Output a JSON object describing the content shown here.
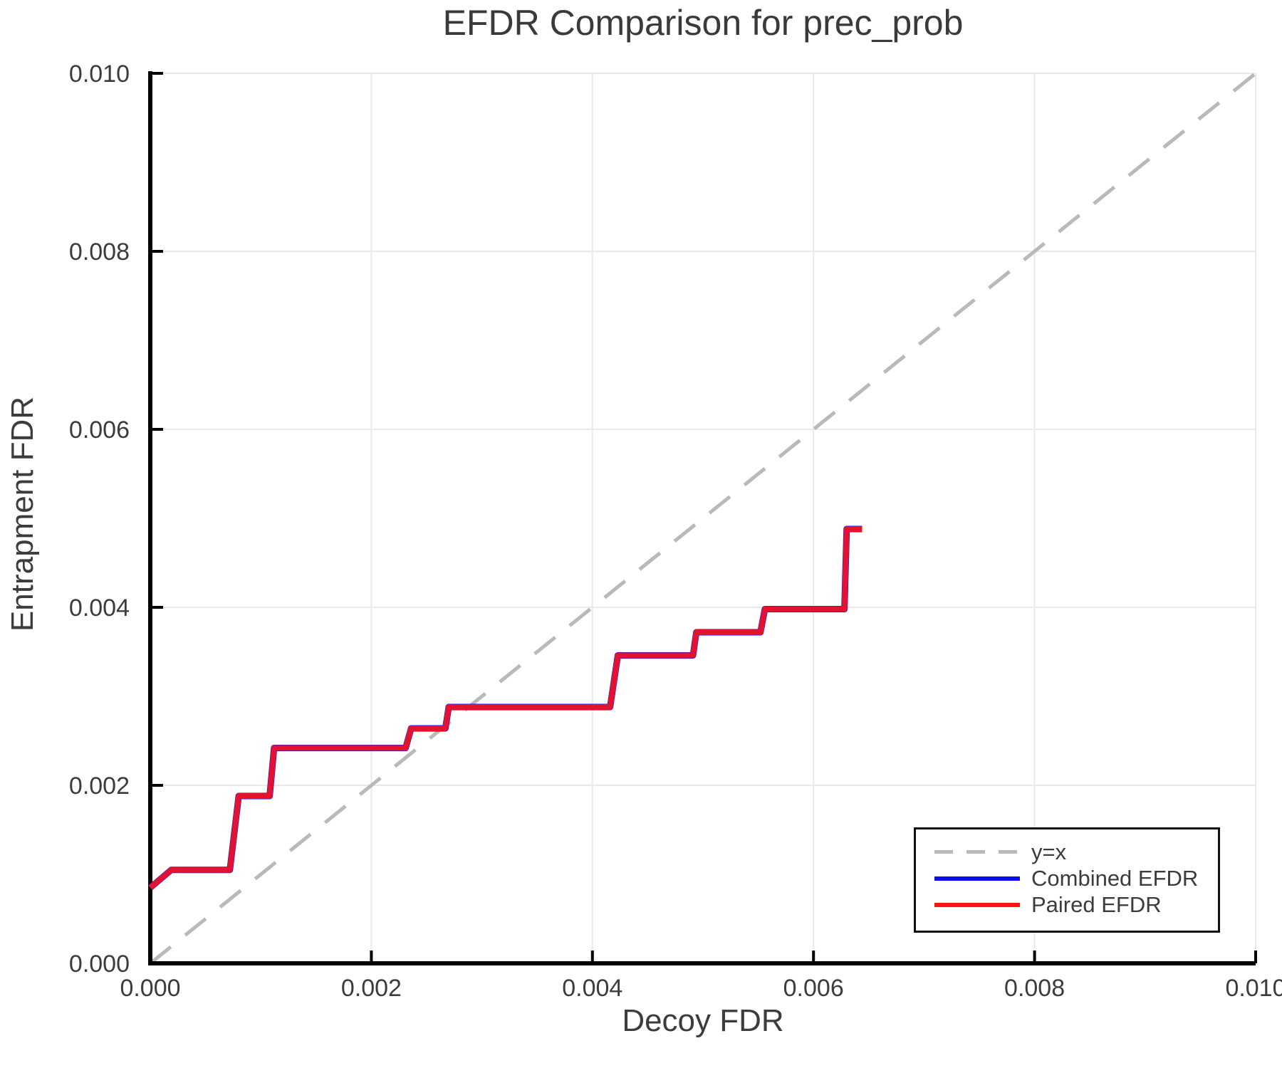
{
  "figure": {
    "title": "EFDR Comparison for prec_prob",
    "xlabel": "Decoy FDR",
    "ylabel": "Entrapment FDR"
  },
  "legend": {
    "items": [
      {
        "label": "y=x",
        "color": "#b9b9b9",
        "style": "dashed"
      },
      {
        "label": "Combined EFDR",
        "color": "#0d0df2",
        "style": "solid"
      },
      {
        "label": "Paired EFDR",
        "color": "#ff1414",
        "style": "solid"
      }
    ]
  },
  "colors": {
    "background": "#ffffff",
    "grid": "#e9e9e9",
    "spine": "#000000",
    "text": "#3c3c3c",
    "reference_line": "#b9b9b9",
    "combined": "#0d0df2",
    "paired": "#ff1414"
  },
  "chart_data": {
    "type": "line",
    "title": "EFDR Comparison for prec_prob",
    "xlabel": "Decoy FDR",
    "ylabel": "Entrapment FDR",
    "xlim": [
      0,
      0.01
    ],
    "ylim": [
      0,
      0.01
    ],
    "xticks": [
      "0.000",
      "0.002",
      "0.004",
      "0.006",
      "0.008",
      "0.010"
    ],
    "yticks": [
      "0.000",
      "0.002",
      "0.004",
      "0.006",
      "0.008",
      "0.010"
    ],
    "grid": true,
    "legend_position": "lower right",
    "series": [
      {
        "name": "y=x",
        "style": "dashed",
        "color": "#b9b9b9",
        "points": [
          [
            0,
            0
          ],
          [
            0.01,
            0.01
          ]
        ]
      },
      {
        "name": "Combined EFDR",
        "style": "solid",
        "color": "#0d0df2",
        "points": [
          [
            0.0,
            0.00085
          ],
          [
            0.00019,
            0.00105
          ],
          [
            0.00072,
            0.00105
          ],
          [
            0.0008,
            0.00188
          ],
          [
            0.00108,
            0.00188
          ],
          [
            0.00112,
            0.00242
          ],
          [
            0.00231,
            0.00242
          ],
          [
            0.00236,
            0.00264
          ],
          [
            0.00267,
            0.00264
          ],
          [
            0.0027,
            0.00288
          ],
          [
            0.00416,
            0.00288
          ],
          [
            0.00423,
            0.00346
          ],
          [
            0.00491,
            0.00346
          ],
          [
            0.00494,
            0.00372
          ],
          [
            0.00552,
            0.00372
          ],
          [
            0.00556,
            0.00398
          ],
          [
            0.00628,
            0.00398
          ],
          [
            0.0063,
            0.00488
          ],
          [
            0.00644,
            0.00488
          ]
        ]
      },
      {
        "name": "Paired EFDR",
        "style": "solid",
        "color": "#ff1414",
        "points": [
          [
            0.0,
            0.00085
          ],
          [
            0.00019,
            0.00105
          ],
          [
            0.00072,
            0.00105
          ],
          [
            0.0008,
            0.00188
          ],
          [
            0.00108,
            0.00188
          ],
          [
            0.00112,
            0.00242
          ],
          [
            0.00231,
            0.00242
          ],
          [
            0.00236,
            0.00264
          ],
          [
            0.00267,
            0.00264
          ],
          [
            0.0027,
            0.00288
          ],
          [
            0.00416,
            0.00288
          ],
          [
            0.00423,
            0.00346
          ],
          [
            0.00491,
            0.00346
          ],
          [
            0.00494,
            0.00372
          ],
          [
            0.00552,
            0.00372
          ],
          [
            0.00556,
            0.00398
          ],
          [
            0.00628,
            0.00398
          ],
          [
            0.0063,
            0.00488
          ],
          [
            0.00644,
            0.00488
          ]
        ]
      }
    ]
  }
}
